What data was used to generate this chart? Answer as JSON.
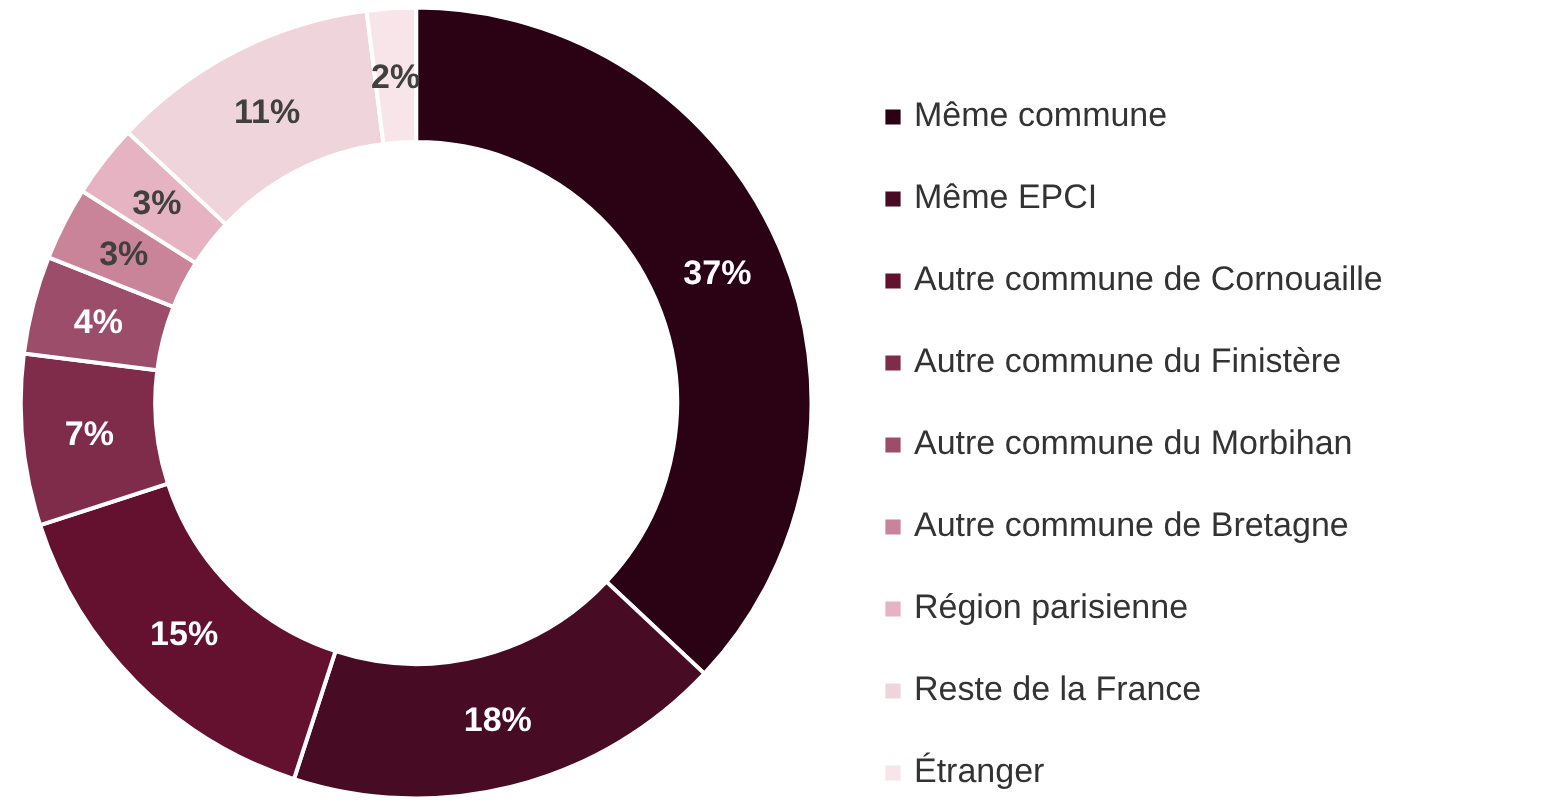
{
  "chart_data": {
    "type": "donut",
    "categories": [
      "Même commune",
      "Même EPCI",
      "Autre commune de Cornouaille",
      "Autre commune du Finistère",
      "Autre commune du Morbihan",
      "Autre commune de Bretagne",
      "Région parisienne",
      "Reste de la France",
      "Étranger"
    ],
    "values": [
      37,
      18,
      15,
      7,
      4,
      3,
      3,
      11,
      2
    ],
    "colors": [
      "#2b0114",
      "#470b23",
      "#63112f",
      "#7f2c4a",
      "#9c4d6a",
      "#c98499",
      "#e6b3c3",
      "#f0d4dc",
      "#f8e5ea"
    ],
    "value_labels": [
      "37%",
      "18%",
      "15%",
      "7%",
      "4%",
      "3%",
      "3%",
      "11%",
      "2%"
    ],
    "legend": "right"
  }
}
